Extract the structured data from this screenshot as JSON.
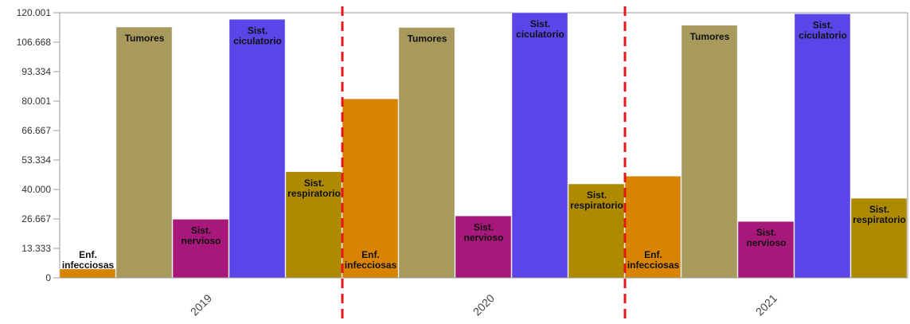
{
  "chart_data": {
    "type": "bar",
    "categories": [
      "2019",
      "2020",
      "2021"
    ],
    "series": [
      {
        "name": "Enf. infecciosas",
        "label_lines": [
          "Enf.",
          "infecciosas"
        ],
        "color": "#d98400",
        "values": [
          4000,
          81000,
          46000
        ]
      },
      {
        "name": "Tumores",
        "label_lines": [
          "Tumores"
        ],
        "color": "#a89a5c",
        "values": [
          113500,
          113300,
          114300
        ]
      },
      {
        "name": "Sist. nervioso",
        "label_lines": [
          "Sist.",
          "nervioso"
        ],
        "color": "#a8187a",
        "values": [
          26500,
          28000,
          25500
        ]
      },
      {
        "name": "Sist. ciculatorio",
        "label_lines": [
          "Sist.",
          "ciculatorio"
        ],
        "color": "#5b45e8",
        "values": [
          117000,
          120001,
          119500
        ]
      },
      {
        "name": "Sist. respiratorio",
        "label_lines": [
          "Sist.",
          "respiratorio"
        ],
        "color": "#ad8a00",
        "values": [
          48000,
          42500,
          36000
        ]
      }
    ],
    "yticks": [
      "0",
      "13.333",
      "26.667",
      "40.000",
      "53.334",
      "66.667",
      "80.001",
      "93.334",
      "106.668",
      "120.001"
    ],
    "ylim": [
      0,
      120001
    ],
    "grid": false,
    "separator_color": "#e8141c"
  }
}
